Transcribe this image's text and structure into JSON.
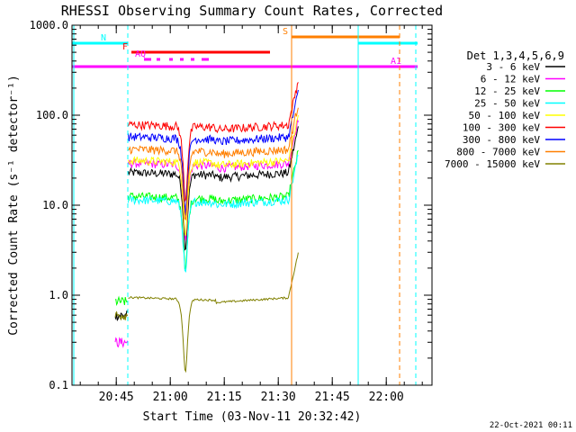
{
  "chart_data": {
    "type": "line",
    "title": "RHESSI Observing Summary Count Rates, Corrected",
    "xlabel": "Start Time (03-Nov-11 20:32:42)",
    "ylabel": "Corrected Count Rate (s⁻¹ detector⁻¹)",
    "y_scale": "log",
    "ylim": [
      0.1,
      1000
    ],
    "xlim_minutes_after_start": [
      0,
      100
    ],
    "yticks": [
      {
        "value": 0.1,
        "label": "0.1"
      },
      {
        "value": 1,
        "label": "1.0"
      },
      {
        "value": 10,
        "label": "10.0"
      },
      {
        "value": 100,
        "label": "100.0"
      },
      {
        "value": 1000,
        "label": "1000.0"
      }
    ],
    "xticks": [
      {
        "minute": 12.3,
        "label": "20:45"
      },
      {
        "minute": 27.3,
        "label": "21:00"
      },
      {
        "minute": 42.3,
        "label": "21:15"
      },
      {
        "minute": 57.3,
        "label": "21:30"
      },
      {
        "minute": 72.3,
        "label": "21:45"
      },
      {
        "minute": 87.3,
        "label": "22:00"
      }
    ],
    "legend_title": "Det 1,3,4,5,6,9",
    "legend_placement": "right",
    "series": [
      {
        "name": "3 - 6 keV",
        "color": "#000000",
        "level": 22,
        "pre": 0.6
      },
      {
        "name": "6 - 12 keV",
        "color": "#ff00ff",
        "level": 28,
        "pre": 0.3
      },
      {
        "name": "12 - 25 keV",
        "color": "#00ff00",
        "level": 12,
        "pre": 0.85
      },
      {
        "name": "25 - 50 keV",
        "color": "#00ffff",
        "level": 11,
        "pre": null
      },
      {
        "name": "50 - 100 keV",
        "color": "#ffff00",
        "level": 30,
        "pre": null
      },
      {
        "name": "100 - 300 keV",
        "color": "#ff0000",
        "level": 75,
        "pre": null
      },
      {
        "name": "300 - 800 keV",
        "color": "#0000ff",
        "level": 55,
        "pre": null
      },
      {
        "name": "800 - 7000 keV",
        "color": "#ff7f00",
        "level": 40,
        "pre": null
      },
      {
        "name": "7000 - 15000 keV",
        "color": "#808000",
        "level": 0.9,
        "pre": 0.6
      }
    ],
    "flag_bars": [
      {
        "label": "N",
        "color": "#00ffff",
        "segments": [
          [
            0,
            15.5
          ],
          [
            79.5,
            96
          ]
        ]
      },
      {
        "label": "F",
        "color": "#ff0000",
        "segments": [
          [
            16.5,
            55
          ]
        ]
      },
      {
        "label": "S",
        "color": "#ff7f00",
        "segments": [
          [
            61,
            91
          ]
        ]
      },
      {
        "label": "AQ",
        "color": "#ff00ff",
        "segments": [
          [
            20,
            22
          ],
          [
            23.5,
            24.5
          ],
          [
            27,
            28
          ],
          [
            30,
            31
          ],
          [
            33,
            34
          ],
          [
            36,
            38
          ]
        ]
      },
      {
        "label": "A1",
        "color": "#ff00ff",
        "segments": [
          [
            0,
            96
          ]
        ]
      }
    ],
    "vertical_markers": [
      {
        "minute": 0.5,
        "color": "#00ffff",
        "style": "solid"
      },
      {
        "minute": 15.5,
        "color": "#00ffff",
        "style": "dashed"
      },
      {
        "minute": 61,
        "color": "#ff7f00",
        "style": "solid"
      },
      {
        "minute": 79.5,
        "color": "#00ffff",
        "style": "solid"
      },
      {
        "minute": 91,
        "color": "#ff7f00",
        "style": "dashed"
      },
      {
        "minute": 95.5,
        "color": "#00ffff",
        "style": "dashed"
      }
    ]
  },
  "footer": {
    "date_stamp": "22-Oct-2021 00:11"
  }
}
